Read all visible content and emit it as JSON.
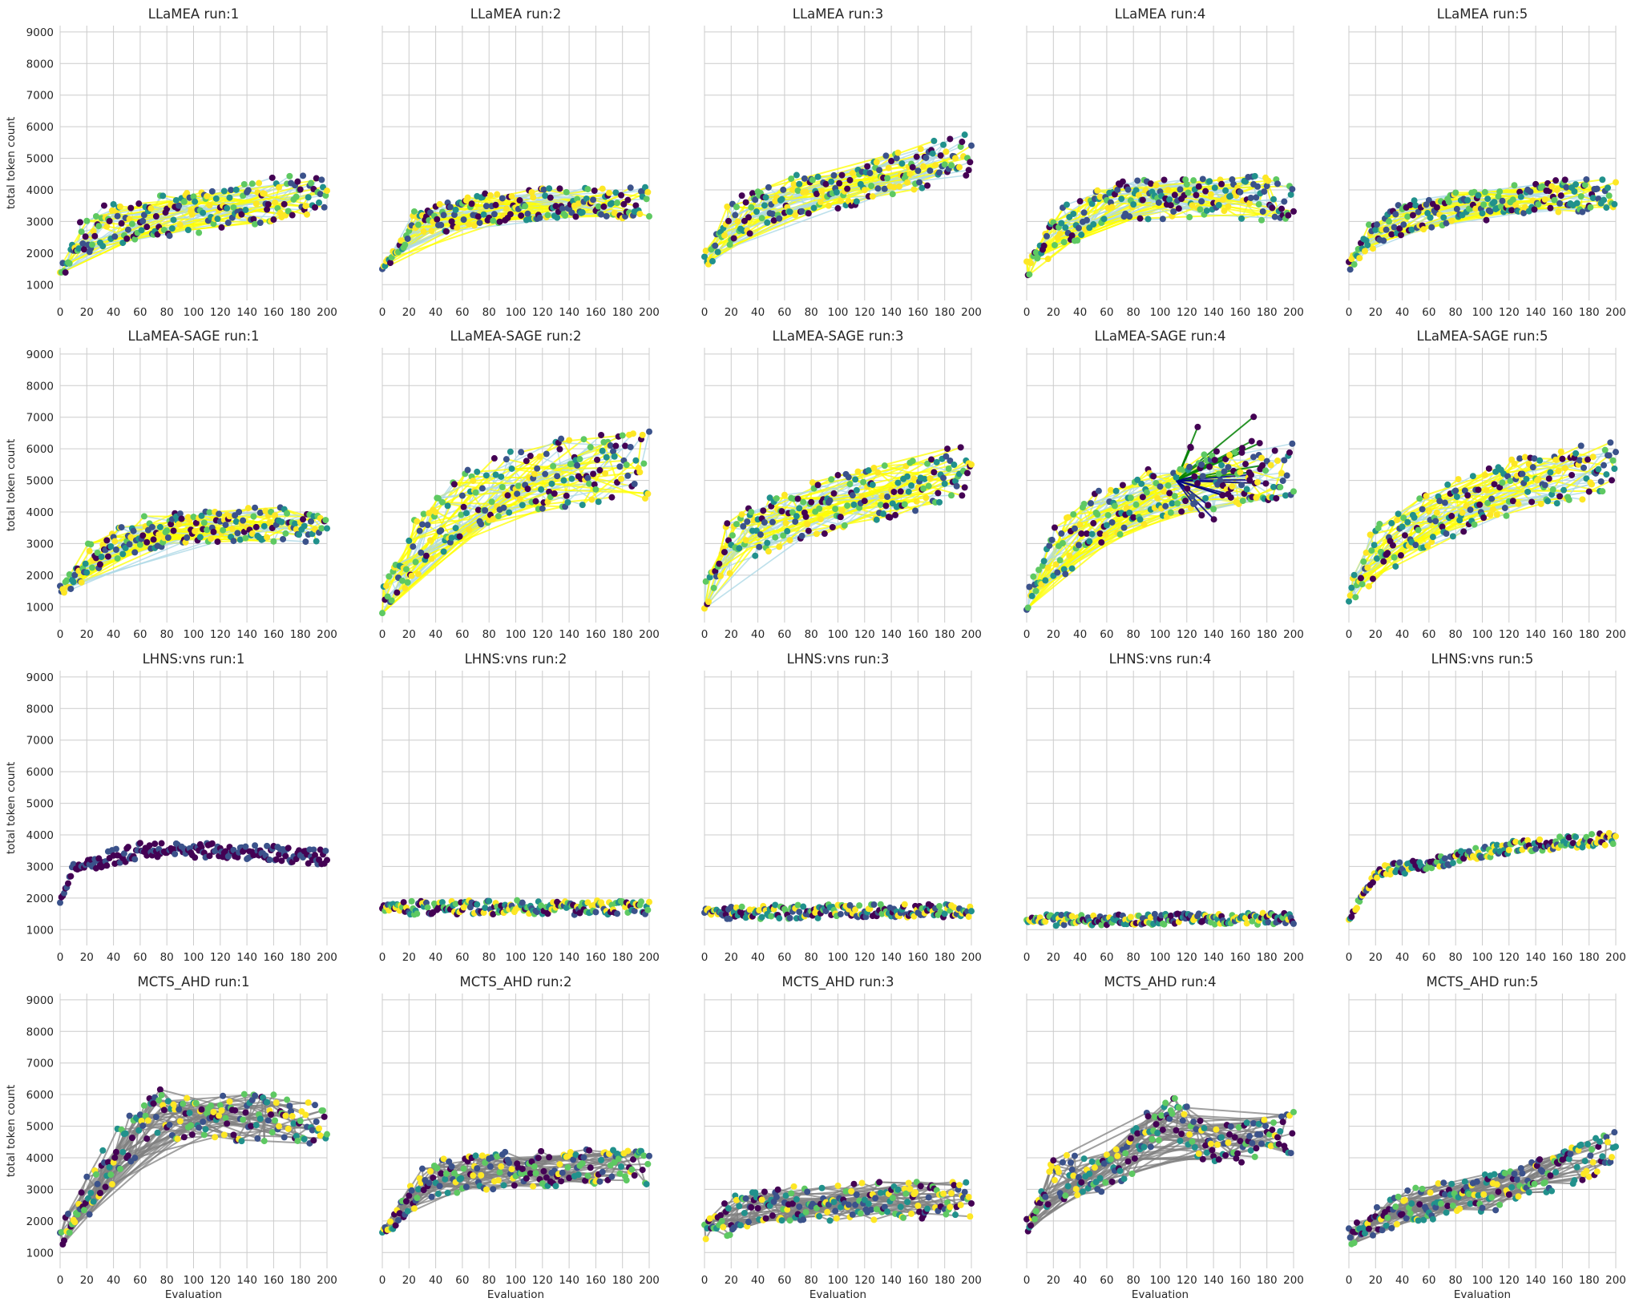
{
  "figure": {
    "ylabel": "total token count",
    "xlabel": "Evaluation"
  },
  "axes": {
    "xlim": [
      0,
      200
    ],
    "ylim": [
      500,
      9200
    ],
    "xticks": [
      0,
      20,
      40,
      60,
      80,
      100,
      120,
      140,
      160,
      180,
      200
    ],
    "yticks": [
      1000,
      2000,
      3000,
      4000,
      5000,
      6000,
      7000,
      8000,
      9000
    ]
  },
  "colors": {
    "grid": "#cccccc",
    "link_improve": "#ffff00",
    "link_other": "#add8e6",
    "link_mcts": "#808080",
    "link_green": "#008000",
    "link_navy": "#000080",
    "viridis": [
      "#440154",
      "#3b528b",
      "#21918c",
      "#5ec962",
      "#fde725"
    ]
  },
  "chart_data": [
    {
      "type": "scatter",
      "title": "LLaMEA run:1",
      "grid": true,
      "xlim": [
        0,
        200
      ],
      "ylim": [
        500,
        9200
      ],
      "trend": [
        [
          0,
          1300
        ],
        [
          20,
          2700
        ],
        [
          60,
          3100
        ],
        [
          120,
          3400
        ],
        [
          200,
          4000
        ]
      ],
      "spread": 700,
      "links": "llamea",
      "points": "approx"
    },
    {
      "type": "scatter",
      "title": "LLaMEA run:2",
      "grid": true,
      "xlim": [
        0,
        200
      ],
      "ylim": [
        500,
        9200
      ],
      "trend": [
        [
          0,
          1400
        ],
        [
          20,
          2800
        ],
        [
          60,
          3300
        ],
        [
          120,
          3600
        ],
        [
          200,
          3600
        ]
      ],
      "spread": 500,
      "links": "llamea",
      "points": "approx"
    },
    {
      "type": "scatter",
      "title": "LLaMEA run:3",
      "grid": true,
      "xlim": [
        0,
        200
      ],
      "ylim": [
        500,
        9200
      ],
      "trend": [
        [
          0,
          1700
        ],
        [
          20,
          3000
        ],
        [
          60,
          3800
        ],
        [
          120,
          4200
        ],
        [
          200,
          5200
        ]
      ],
      "spread": 700,
      "links": "llamea",
      "points": "approx"
    },
    {
      "type": "scatter",
      "title": "LLaMEA run:4",
      "grid": true,
      "xlim": [
        0,
        200
      ],
      "ylim": [
        500,
        9200
      ],
      "trend": [
        [
          0,
          1500
        ],
        [
          20,
          2600
        ],
        [
          60,
          3700
        ],
        [
          120,
          3800
        ],
        [
          200,
          3700
        ]
      ],
      "spread": 700,
      "links": "llamea",
      "points": "approx"
    },
    {
      "type": "scatter",
      "title": "LLaMEA run:5",
      "grid": true,
      "xlim": [
        0,
        200
      ],
      "ylim": [
        500,
        9200
      ],
      "trend": [
        [
          0,
          1500
        ],
        [
          20,
          2800
        ],
        [
          60,
          3300
        ],
        [
          120,
          3700
        ],
        [
          200,
          3900
        ]
      ],
      "spread": 550,
      "links": "llamea",
      "points": "approx"
    },
    {
      "type": "scatter",
      "title": "LLaMEA-SAGE run:1",
      "grid": true,
      "xlim": [
        0,
        200
      ],
      "ylim": [
        500,
        9200
      ],
      "trend": [
        [
          0,
          1400
        ],
        [
          20,
          2500
        ],
        [
          60,
          3300
        ],
        [
          120,
          3600
        ],
        [
          200,
          3600
        ]
      ],
      "spread": 550,
      "links": "llamea",
      "points": "approx"
    },
    {
      "type": "scatter",
      "title": "LLaMEA-SAGE run:2",
      "grid": true,
      "xlim": [
        0,
        200
      ],
      "ylim": [
        500,
        9200
      ],
      "trend": [
        [
          0,
          1300
        ],
        [
          30,
          3000
        ],
        [
          60,
          4400
        ],
        [
          120,
          5200
        ],
        [
          200,
          5500
        ]
      ],
      "spread": 1100,
      "links": "llamea",
      "points": "approx"
    },
    {
      "type": "scatter",
      "title": "LLaMEA-SAGE run:3",
      "grid": true,
      "xlim": [
        0,
        200
      ],
      "ylim": [
        500,
        9200
      ],
      "trend": [
        [
          0,
          1300
        ],
        [
          20,
          3000
        ],
        [
          60,
          3800
        ],
        [
          120,
          4500
        ],
        [
          200,
          5400
        ]
      ],
      "spread": 900,
      "links": "llamea",
      "points": "approx"
    },
    {
      "type": "scatter",
      "title": "LLaMEA-SAGE run:4",
      "grid": true,
      "xlim": [
        0,
        200
      ],
      "ylim": [
        500,
        9200
      ],
      "trend": [
        [
          0,
          1200
        ],
        [
          20,
          2600
        ],
        [
          60,
          4000
        ],
        [
          110,
          4800
        ],
        [
          200,
          5300
        ]
      ],
      "spread": 900,
      "links": "sage4",
      "points": "approx"
    },
    {
      "type": "scatter",
      "title": "LLaMEA-SAGE run:5",
      "grid": true,
      "xlim": [
        0,
        200
      ],
      "ylim": [
        500,
        9200
      ],
      "trend": [
        [
          0,
          1400
        ],
        [
          20,
          2800
        ],
        [
          60,
          3800
        ],
        [
          120,
          4800
        ],
        [
          200,
          5500
        ]
      ],
      "spread": 900,
      "links": "llamea",
      "points": "approx"
    },
    {
      "type": "scatter",
      "title": "LHNS:vns run:1",
      "grid": true,
      "xlim": [
        0,
        200
      ],
      "ylim": [
        500,
        9200
      ],
      "trend": [
        [
          0,
          1900
        ],
        [
          10,
          3000
        ],
        [
          60,
          3500
        ],
        [
          120,
          3500
        ],
        [
          200,
          3300
        ]
      ],
      "spread": 250,
      "links": "none",
      "points": "approx"
    },
    {
      "type": "scatter",
      "title": "LHNS:vns run:2",
      "grid": true,
      "xlim": [
        0,
        200
      ],
      "ylim": [
        500,
        9200
      ],
      "trend": [
        [
          0,
          1700
        ],
        [
          200,
          1700
        ]
      ],
      "spread": 230,
      "links": "none",
      "points": "approx"
    },
    {
      "type": "scatter",
      "title": "LHNS:vns run:3",
      "grid": true,
      "xlim": [
        0,
        200
      ],
      "ylim": [
        500,
        9200
      ],
      "trend": [
        [
          0,
          1550
        ],
        [
          200,
          1600
        ]
      ],
      "spread": 220,
      "links": "none",
      "points": "approx"
    },
    {
      "type": "scatter",
      "title": "LHNS:vns run:4",
      "grid": true,
      "xlim": [
        0,
        200
      ],
      "ylim": [
        500,
        9200
      ],
      "trend": [
        [
          0,
          1300
        ],
        [
          200,
          1350
        ]
      ],
      "spread": 180,
      "links": "none",
      "points": "approx"
    },
    {
      "type": "scatter",
      "title": "LHNS:vns run:5",
      "grid": true,
      "xlim": [
        0,
        200
      ],
      "ylim": [
        500,
        9200
      ],
      "trend": [
        [
          0,
          1300
        ],
        [
          20,
          2800
        ],
        [
          60,
          3100
        ],
        [
          120,
          3600
        ],
        [
          200,
          3900
        ]
      ],
      "spread": 200,
      "links": "none",
      "points": "approx"
    },
    {
      "type": "scatter",
      "title": "MCTS_AHD run:1",
      "grid": true,
      "xlim": [
        0,
        200
      ],
      "ylim": [
        500,
        9200
      ],
      "trend": [
        [
          0,
          1500
        ],
        [
          40,
          4000
        ],
        [
          70,
          5400
        ],
        [
          130,
          5300
        ],
        [
          200,
          5200
        ]
      ],
      "spread": 800,
      "links": "mcts",
      "points": "approx"
    },
    {
      "type": "scatter",
      "title": "MCTS_AHD run:2",
      "grid": true,
      "xlim": [
        0,
        200
      ],
      "ylim": [
        500,
        9200
      ],
      "trend": [
        [
          0,
          1500
        ],
        [
          30,
          3300
        ],
        [
          80,
          3600
        ],
        [
          200,
          3700
        ]
      ],
      "spread": 600,
      "links": "mcts",
      "points": "approx"
    },
    {
      "type": "scatter",
      "title": "MCTS_AHD run:3",
      "grid": true,
      "xlim": [
        0,
        200
      ],
      "ylim": [
        500,
        9200
      ],
      "trend": [
        [
          0,
          1700
        ],
        [
          40,
          2600
        ],
        [
          100,
          2600
        ],
        [
          200,
          2700
        ]
      ],
      "spread": 600,
      "links": "mcts",
      "points": "approx"
    },
    {
      "type": "scatter",
      "title": "MCTS_AHD run:4",
      "grid": true,
      "xlim": [
        0,
        200
      ],
      "ylim": [
        500,
        9200
      ],
      "trend": [
        [
          0,
          1800
        ],
        [
          20,
          3300
        ],
        [
          70,
          3700
        ],
        [
          105,
          5500
        ],
        [
          140,
          4300
        ],
        [
          200,
          4800
        ]
      ],
      "spread": 700,
      "links": "mcts",
      "points": "approx"
    },
    {
      "type": "scatter",
      "title": "MCTS_AHD run:5",
      "grid": true,
      "xlim": [
        0,
        200
      ],
      "ylim": [
        500,
        9200
      ],
      "trend": [
        [
          0,
          1500
        ],
        [
          40,
          2500
        ],
        [
          120,
          3000
        ],
        [
          200,
          4300
        ]
      ],
      "spread": 600,
      "links": "mcts",
      "points": "approx"
    }
  ]
}
